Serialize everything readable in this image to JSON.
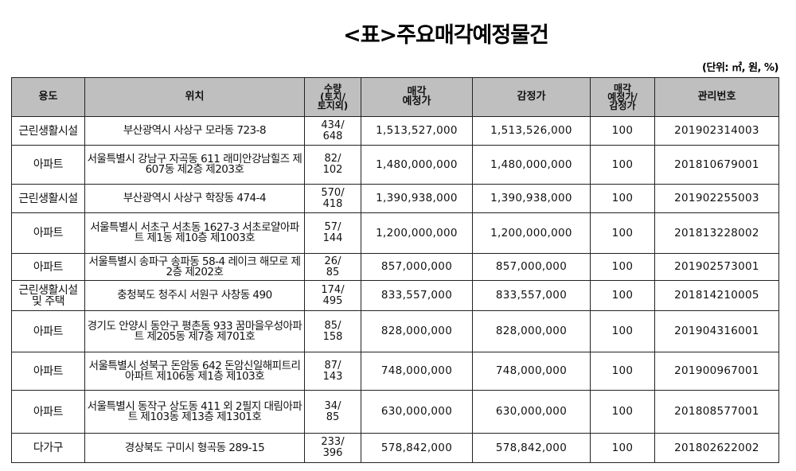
{
  "title": "<표>주요매각예정물건",
  "unit": "(단위: ㎡, 원, %)",
  "table": {
    "headers": [
      "용도",
      "위치",
      "수량\n(토지/\n토지외)",
      "매각\n예정가",
      "감정가",
      "매각\n예정가/\n감정가",
      "관리번호"
    ],
    "header_bg": "#bfbfbf",
    "rows": [
      {
        "use": "근린생활시설",
        "location": "부산광역시 사상구 모라동 723-8",
        "area": "434/\n648",
        "planned_price": "1,513,527,000",
        "appraisal": "1,513,526,000",
        "ratio": "100",
        "mgmt_no": "201902314003"
      },
      {
        "use": "아파트",
        "location": "서울특별시 강남구 자곡동 611 래미안강남힐즈 제607동 제2층 제203호",
        "area": "82/\n102",
        "planned_price": "1,480,000,000",
        "appraisal": "1,480,000,000",
        "ratio": "100",
        "mgmt_no": "201810679001"
      },
      {
        "use": "근린생활시설",
        "location": "부산광역시 사상구 학장동 474-4",
        "area": "570/\n418",
        "planned_price": "1,390,938,000",
        "appraisal": "1,390,938,000",
        "ratio": "100",
        "mgmt_no": "201902255003"
      },
      {
        "use": "아파트",
        "location": "서울특별시 서초구 서초동 1627-3 서초로얄아파트 제1동 제10층 제1003호",
        "area": "57/\n144",
        "planned_price": "1,200,000,000",
        "appraisal": "1,200,000,000",
        "ratio": "100",
        "mgmt_no": "201813228002"
      },
      {
        "use": "아파트",
        "location": "서울특별시 송파구 송파동 58-4 레이크 해모로 제2층 제202호",
        "area": "26/\n85",
        "planned_price": "857,000,000",
        "appraisal": "857,000,000",
        "ratio": "100",
        "mgmt_no": "201902573001"
      },
      {
        "use": "근린생활시설 및 주택",
        "location": "충청북도 청주시 서원구 사창동 490",
        "area": "174/\n495",
        "planned_price": "833,557,000",
        "appraisal": "833,557,000",
        "ratio": "100",
        "mgmt_no": "201814210005"
      },
      {
        "use": "아파트",
        "location": "경기도 안양시 동안구 평촌동 933 꿈마을우성아파트 제205동 제7층 제701호",
        "area": "85/\n158",
        "planned_price": "828,000,000",
        "appraisal": "828,000,000",
        "ratio": "100",
        "mgmt_no": "201904316001"
      },
      {
        "use": "아파트",
        "location": "서울특별시 성북구 돈암동 642 돈암신일해피트리아파트 제106동 제1층 제103호",
        "area": "87/\n143",
        "planned_price": "748,000,000",
        "appraisal": "748,000,000",
        "ratio": "100",
        "mgmt_no": "201900967001"
      },
      {
        "use": "아파트",
        "location": "서울특별시 동작구 상도동 411 외 2필지 대림아파트 제103동 제13층 제1301호",
        "area": "34/\n85",
        "planned_price": "630,000,000",
        "appraisal": "630,000,000",
        "ratio": "100",
        "mgmt_no": "201808577001"
      },
      {
        "use": "다가구",
        "location": "경상북도 구미시 형곡동 289-15",
        "area": "233/\n396",
        "planned_price": "578,842,000",
        "appraisal": "578,842,000",
        "ratio": "100",
        "mgmt_no": "201802622002"
      }
    ]
  }
}
